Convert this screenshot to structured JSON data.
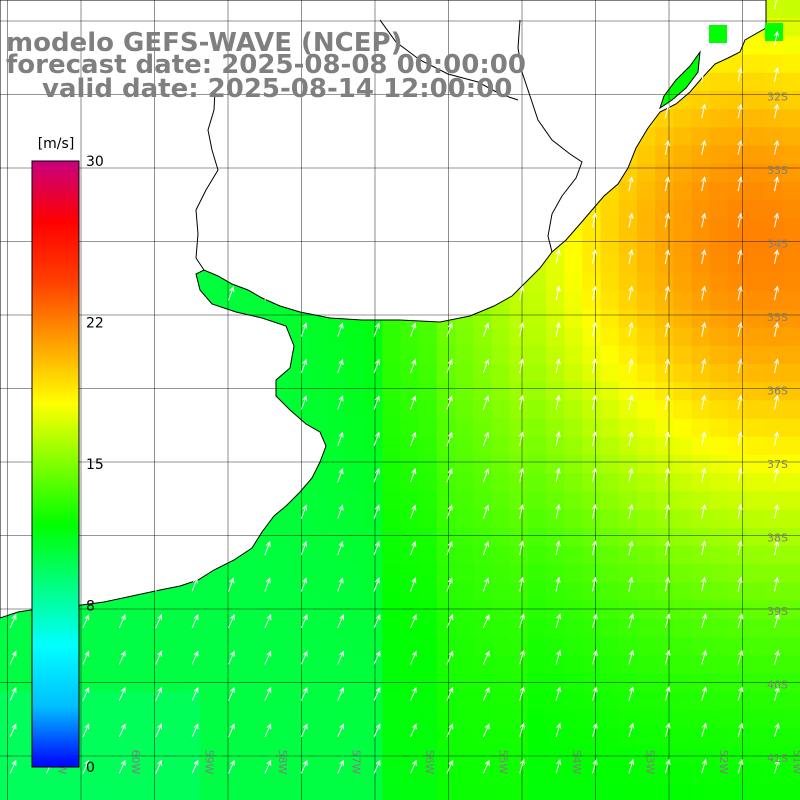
{
  "title": {
    "model": "modelo GEFS-WAVE (NCEP)",
    "forecast": "forecast date: 2025-08-08 00:00:00",
    "valid": "valid date: 2025-08-14 12:00:00"
  },
  "colorbar": {
    "unit": "[m/s]",
    "min": 0,
    "max": 30,
    "ticks": [
      {
        "value": 30,
        "label": "30"
      },
      {
        "value": 22,
        "label": "22"
      },
      {
        "value": 15,
        "label": "15"
      },
      {
        "value": 8,
        "label": "8"
      },
      {
        "value": 0,
        "label": "0"
      }
    ],
    "colors": [
      "#0000ff",
      "#00bfff",
      "#00ffff",
      "#00ff80",
      "#00ff00",
      "#80ff00",
      "#ffff00",
      "#ffa000",
      "#ff4000",
      "#ff0000",
      "#c80080"
    ]
  },
  "lat_labels": [
    "32S",
    "33S",
    "34S",
    "35S",
    "36S",
    "37S",
    "38S",
    "39S",
    "40S",
    "41S"
  ],
  "lon_labels": [
    "61W",
    "60W",
    "59W",
    "58W",
    "57W",
    "56W",
    "55W",
    "54W",
    "53W",
    "52W",
    "51W"
  ],
  "map": {
    "lon_range": [
      -61.6,
      -50.7
    ],
    "lat_range": [
      -41.6,
      -31.3
    ],
    "land_color": "#ffffff",
    "grid_color": "#000000",
    "arrow_color": "#ffffff"
  },
  "icons": {
    "wind_arrow": "arrow-icon"
  }
}
